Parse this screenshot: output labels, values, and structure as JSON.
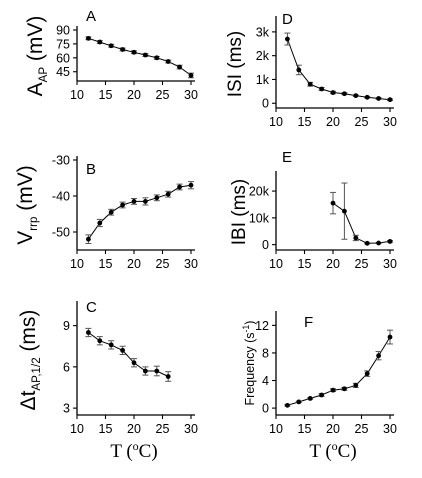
{
  "xlabel": {
    "main": "T (",
    "sup": "o",
    "tail": "C)"
  },
  "chart_data": [
    {
      "id": "A",
      "type": "line",
      "letter": "A",
      "ylabel": {
        "main": "A",
        "sub": "AP",
        "unit": " (mV)"
      },
      "xlim": [
        10,
        30
      ],
      "ylim": [
        35,
        90
      ],
      "xticks": [
        10,
        15,
        20,
        25,
        30
      ],
      "yticks": [
        45,
        60,
        75,
        90
      ],
      "yticklabels": [
        "45",
        "60",
        "75",
        "90"
      ],
      "series": [
        {
          "x": [
            12,
            14,
            16,
            18,
            20,
            22,
            24,
            26,
            28,
            30
          ],
          "y": [
            81,
            77,
            73,
            69,
            66,
            63,
            60,
            56,
            50,
            41
          ],
          "err": [
            1.5,
            1.5,
            1.5,
            1.5,
            1.5,
            1.5,
            1.5,
            1.5,
            2,
            2.5
          ]
        }
      ]
    },
    {
      "id": "B",
      "type": "line",
      "letter": "B",
      "ylabel": {
        "main": "V",
        "sub": "rrp",
        "unit": " (mV)"
      },
      "xlim": [
        10,
        30
      ],
      "ylim": [
        -55,
        -30
      ],
      "xticks": [
        10,
        15,
        20,
        25,
        30
      ],
      "yticks": [
        -50,
        -40,
        -30
      ],
      "yticklabels": [
        "-50",
        "-40",
        "-30"
      ],
      "series": [
        {
          "x": [
            12,
            14,
            16,
            18,
            20,
            22,
            24,
            26,
            28,
            30
          ],
          "y": [
            -52,
            -47.5,
            -44.5,
            -42.5,
            -41.5,
            -41.5,
            -40.5,
            -39.5,
            -37.5,
            -37
          ],
          "err": [
            1.2,
            1,
            0.8,
            0.8,
            0.8,
            1,
            0.8,
            0.8,
            0.8,
            1
          ]
        }
      ]
    },
    {
      "id": "C",
      "type": "line",
      "letter": "C",
      "ylabel": {
        "main": "Δt",
        "sub": "AP,1/2",
        "unit": " (ms)"
      },
      "xlim": [
        10,
        30
      ],
      "ylim": [
        2.5,
        10.5
      ],
      "xticks": [
        10,
        15,
        20,
        25,
        30
      ],
      "yticks": [
        3,
        6,
        9
      ],
      "yticklabels": [
        "3",
        "6",
        "9"
      ],
      "series": [
        {
          "x": [
            12,
            14,
            16,
            18,
            20,
            22,
            24,
            26
          ],
          "y": [
            8.5,
            7.9,
            7.6,
            7.2,
            6.3,
            5.7,
            5.7,
            5.3
          ],
          "err": [
            0.3,
            0.3,
            0.3,
            0.3,
            0.3,
            0.3,
            0.35,
            0.35
          ]
        }
      ]
    },
    {
      "id": "D",
      "type": "line",
      "letter": "D",
      "ylabel": {
        "main": "ISI",
        "sub": "",
        "unit": " (ms)"
      },
      "xlim": [
        10,
        30
      ],
      "ylim": [
        -200,
        3500
      ],
      "xticks": [
        10,
        15,
        20,
        25,
        30
      ],
      "yticks": [
        0,
        1000,
        2000,
        3000
      ],
      "yticklabels": [
        "0",
        "1k",
        "2k",
        "3k"
      ],
      "series": [
        {
          "x": [
            12,
            14,
            16,
            18,
            20,
            22,
            24,
            26,
            28,
            30
          ],
          "y": [
            2700,
            1400,
            800,
            600,
            450,
            400,
            320,
            250,
            200,
            150
          ],
          "err": [
            250,
            200,
            80,
            60,
            50,
            40,
            30,
            30,
            30,
            30
          ]
        }
      ]
    },
    {
      "id": "E",
      "type": "line",
      "letter": "E",
      "ylabel": {
        "main": "IBI",
        "sub": "",
        "unit": " (ms)"
      },
      "xlim": [
        10,
        30
      ],
      "ylim": [
        -2000,
        26000
      ],
      "xticks": [
        10,
        15,
        20,
        25,
        30
      ],
      "yticks": [
        0,
        10000,
        20000
      ],
      "yticklabels": [
        "0",
        "10k",
        "20k"
      ],
      "series": [
        {
          "x": [
            20,
            22,
            24,
            26,
            28,
            30
          ],
          "y": [
            15500,
            12500,
            2500,
            500,
            600,
            1200
          ],
          "err": [
            4000,
            10500,
            1000,
            200,
            200,
            300
          ]
        }
      ]
    },
    {
      "id": "F",
      "type": "line",
      "letter": "F",
      "ylabel": {
        "main": "Frequency (s",
        "sup": "-1",
        "tail": ")"
      },
      "xlim": [
        10,
        30
      ],
      "ylim": [
        -1,
        13.5
      ],
      "xticks": [
        10,
        15,
        20,
        25,
        30
      ],
      "yticks": [
        0,
        4,
        8,
        12
      ],
      "yticklabels": [
        "0",
        "4",
        "8",
        "12"
      ],
      "series": [
        {
          "x": [
            12,
            14,
            16,
            18,
            20,
            22,
            24,
            26,
            28,
            30
          ],
          "y": [
            0.4,
            0.9,
            1.4,
            1.9,
            2.6,
            2.8,
            3.3,
            5.0,
            7.6,
            10.3
          ],
          "err": [
            0.1,
            0.1,
            0.1,
            0.2,
            0.2,
            0.2,
            0.3,
            0.4,
            0.6,
            1.0
          ]
        }
      ]
    }
  ]
}
